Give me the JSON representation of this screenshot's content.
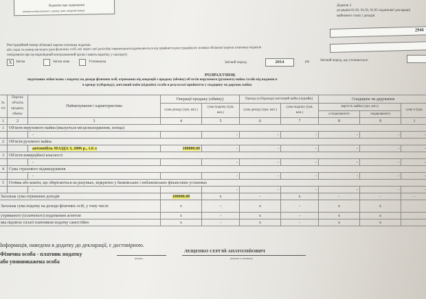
{
  "stamp": {
    "line1": "Відмітка про одержання",
    "line2": "(штамп контролюючого органу, дата, вхідний номер)"
  },
  "appendix": {
    "title": "Додаток 3",
    "line2": "до рядків 01.02, 01.03, 01.05 податкової декларації",
    "line3": "майнового стану і доходів"
  },
  "reg_number_value": "2946",
  "taxpayer_label": {
    "line1": "Реєстраційний номер облікової картки платника податків",
    "line2": "або серія та номер паспорта (для фізичних осіб, які через свої релігійні переконання відмовляються від прийняття реєстраційного номера облікової картки платника податків",
    "line3": "повідомили про це відповідний контролюючий орган і мають відмітку у паспорті)"
  },
  "declaration_type": {
    "options": [
      {
        "label": "Звітна",
        "checked": true,
        "mark": "X"
      },
      {
        "label": "Звітна нова",
        "checked": false,
        "mark": ""
      },
      {
        "label": "Уточнююча",
        "checked": false,
        "mark": ""
      }
    ]
  },
  "period": {
    "label": "Звітний період:",
    "value": "2014",
    "unit": "рік",
    "clarified_label": "Звітний період, що уточнюється:"
  },
  "heading": {
    "title": "РОЗРАХУНОК",
    "line1": "податкових зобов'язань з податку на доходи фізичних осіб, отриманих від операцій з продажу (обміну) об'єктів нерухомого (рухомого) майна та/або від надання в",
    "line2": "в оренду (суборенду), житловий найм (піднайм) та/або в результаті прийняття у спадщину чи дарунок майна"
  },
  "table": {
    "headers": {
      "num": "№ з/п",
      "list": "Перелік об'єктів продажу, обміну",
      "name": "Найменування і характеристика",
      "sale": "Операції продажу (обміну)",
      "rent": "Оренда (суборенда) житловий найм (піднайм)",
      "inherit": "Спадщина чи дарування",
      "income": "сума доходу (грн, коп.)",
      "tax": "сума податку (грн, коп.)",
      "value": "вартість майна (грн, коп.)",
      "inherited": "успадкованого",
      "gifted": "подарованого",
      "tax2": "сума п (грн,"
    },
    "col_numbers": [
      "1",
      "2",
      "3",
      "4",
      "5",
      "6",
      "7",
      "8",
      "9",
      "1"
    ],
    "rows": [
      {
        "type": "section",
        "num": "1",
        "label": "Об'єкти нерухомого майна (вказується місцезнаходження, площа)"
      },
      {
        "type": "data",
        "cells": [
          "-",
          "",
          "-",
          "-",
          "-",
          "-",
          "-",
          "-"
        ]
      },
      {
        "type": "section",
        "num": "2",
        "label": "Об'єкти рухомого майна"
      },
      {
        "type": "data",
        "highlight": [
          0,
          1
        ],
        "cells": [
          "автомобіль МАЗДА 3, 2006 р., 1.6 л",
          "100000.00",
          "-",
          "-",
          "-",
          "-",
          "-",
          "-"
        ]
      },
      {
        "type": "section",
        "num": "3",
        "label": "Об'єкти комерційної власності"
      },
      {
        "type": "data",
        "cells": [
          "-",
          "",
          "-",
          "-",
          "-",
          "-",
          "-",
          "-"
        ]
      },
      {
        "type": "section",
        "num": "4",
        "label": "Сума страхового відшкодування"
      },
      {
        "type": "data",
        "cells": [
          "-",
          "",
          "-",
          "-",
          "-",
          "-",
          "-",
          "-"
        ]
      },
      {
        "type": "section",
        "num": "5",
        "label": "Готівка або кошти, що зберігаються на рахунках, відкритих у банківських і небанківських фінансових установах"
      },
      {
        "type": "data",
        "cells": [
          "-",
          "",
          "-",
          "-",
          "-",
          "-",
          "-",
          "-"
        ]
      },
      {
        "type": "total",
        "highlight": [
          1
        ],
        "cells": [
          "Загальна сума отриманих доходів",
          "100000.00",
          "x",
          "-",
          "x",
          "-",
          "-",
          "-"
        ]
      },
      {
        "type": "total",
        "cells": [
          "Загальна сума податку на доходи фізичних осіб, у тому числі:",
          "x",
          "-",
          "x",
          "-",
          "x",
          "x",
          ""
        ]
      },
      {
        "type": "total",
        "cells": [
          "утриманого (сплаченого) податковим агентом",
          "x",
          "-",
          "x",
          "-",
          "x",
          "x",
          ""
        ]
      },
      {
        "type": "total",
        "cells": [
          "яка підлягає сплаті платником податку самостійно",
          "x",
          "-",
          "x",
          "-",
          "x",
          "x",
          ""
        ]
      }
    ]
  },
  "footer": {
    "statement": "Інформація, наведена в додатку до декларації, є достовірною.",
    "person": "Фізична особа - платник податку",
    "authorized": "або уповноважена особа",
    "sign_caption": "(підпис)",
    "name": "ЛЕЩЕНКО СЕРГІЙ АНАТОЛІЙОВИЧ",
    "name_caption": "(ініціали та прізвище)"
  }
}
